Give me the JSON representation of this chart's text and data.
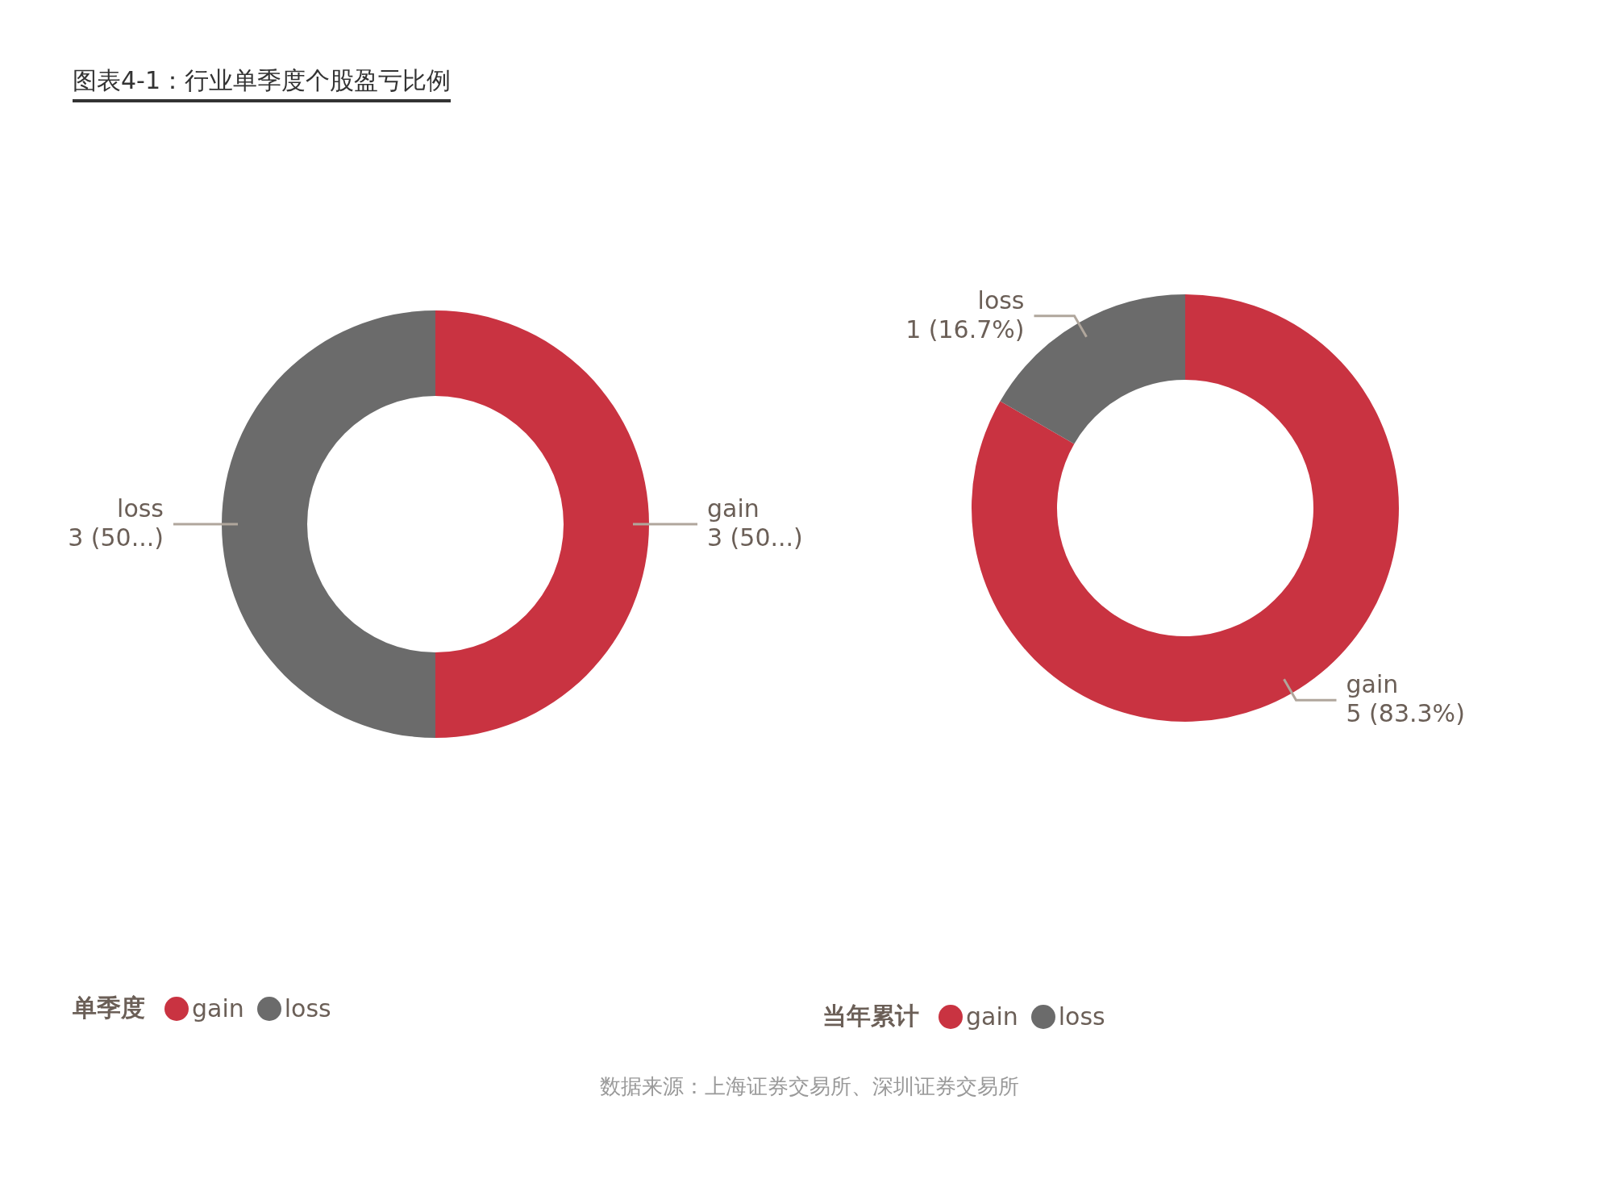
{
  "chart_data": [
    {
      "type": "donut",
      "title": "图表4-1：行业单季度个股盈亏比例",
      "legend_title": "单季度",
      "legend": "bottom",
      "categories": [
        "gain",
        "loss"
      ],
      "values": [
        3,
        3
      ],
      "colors": [
        "#c93341",
        "#6b6b6b"
      ],
      "value_labels": [
        "3 (50...)",
        "3 (50...)"
      ],
      "annotations": [
        "数据来源：上海证券交易所、深圳证券交易所"
      ]
    },
    {
      "type": "donut",
      "legend_title": "当年累计",
      "legend": "bottom",
      "categories": [
        "gain",
        "loss"
      ],
      "values": [
        5,
        1
      ],
      "colors": [
        "#c93341",
        "#6b6b6b"
      ],
      "value_labels": [
        "5 (83.3%)",
        "1 (16.7%)"
      ]
    }
  ]
}
